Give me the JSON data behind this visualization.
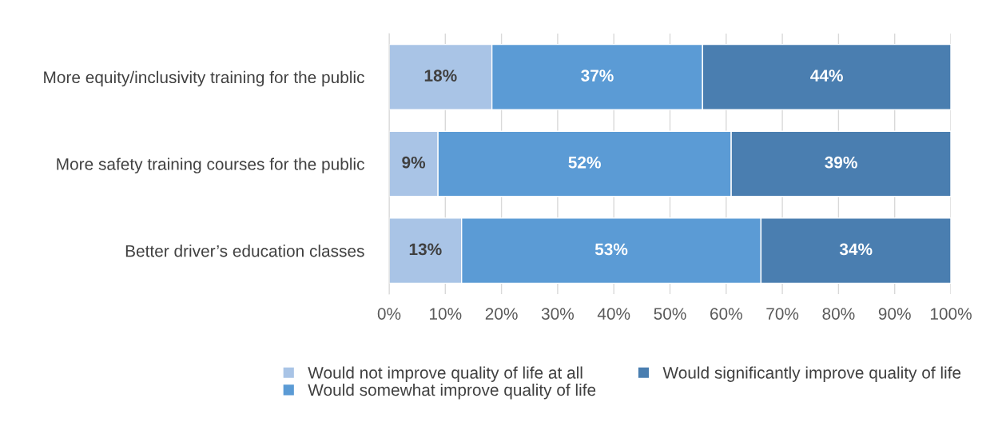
{
  "chart_data": {
    "type": "bar",
    "orientation": "horizontal",
    "stacked": true,
    "categories": [
      "More equity/inclusivity training for the public",
      "More safety training courses for the public",
      "Better driver’s education classes"
    ],
    "series": [
      {
        "name": "Would not improve quality of life at all",
        "color": "#a9c4e6",
        "values": [
          18.3,
          8.7,
          12.9
        ],
        "value_labels": [
          "18%",
          "9%",
          "13%"
        ]
      },
      {
        "name": "Would somewhat improve quality of life",
        "color": "#5b9bd5",
        "values": [
          37.5,
          52.2,
          53.3
        ],
        "value_labels": [
          "37%",
          "52%",
          "53%"
        ]
      },
      {
        "name": "Would significantly improve quality of life",
        "color": "#4a7eb0",
        "values": [
          44.2,
          39.1,
          33.8
        ],
        "value_labels": [
          "44%",
          "39%",
          "34%"
        ]
      }
    ],
    "xlim": [
      0,
      100
    ],
    "xticks": [
      {
        "value": 0,
        "label": "0%"
      },
      {
        "value": 10,
        "label": "10%"
      },
      {
        "value": 20,
        "label": "20%"
      },
      {
        "value": 30,
        "label": "30%"
      },
      {
        "value": 40,
        "label": "40%"
      },
      {
        "value": 50,
        "label": "50%"
      },
      {
        "value": 60,
        "label": "60%"
      },
      {
        "value": 70,
        "label": "70%"
      },
      {
        "value": 80,
        "label": "80%"
      },
      {
        "value": 90,
        "label": "90%"
      },
      {
        "value": 100,
        "label": "100%"
      }
    ],
    "grid": "x",
    "legend": "bottom"
  }
}
